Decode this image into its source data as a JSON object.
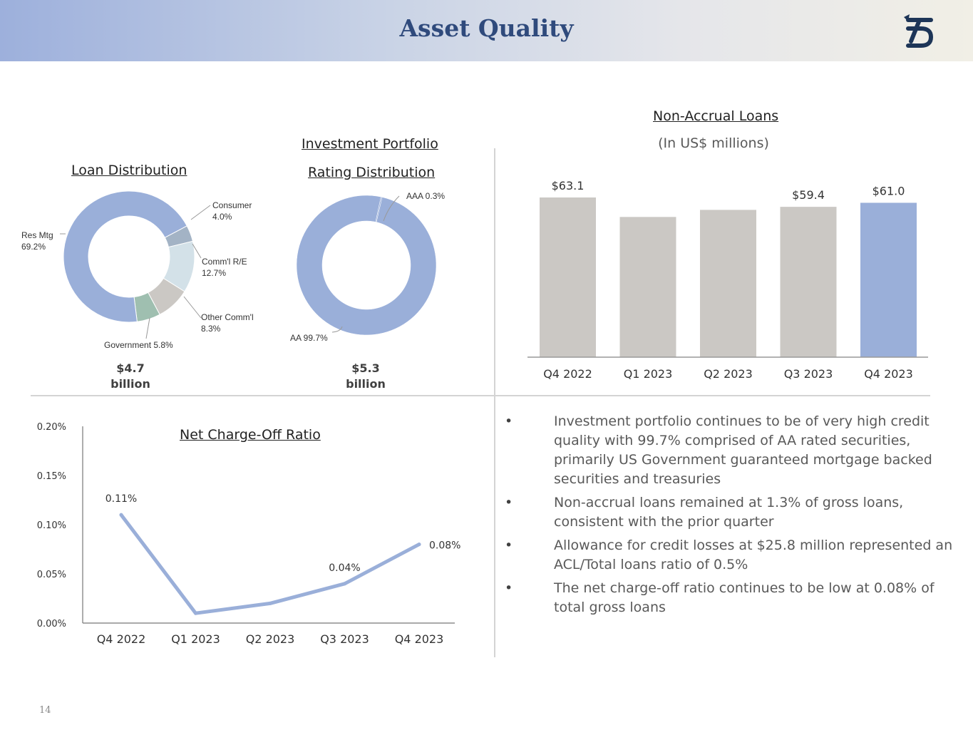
{
  "page": {
    "title": "Asset Quality",
    "page_number": "14"
  },
  "colors": {
    "header_text": "#2f4a7c",
    "accent_blue": "#9aafd9",
    "bar_gray": "#cbc8c4",
    "green": "#9fbfb0",
    "light_blue": "#d3e1e8",
    "slate": "#a3b3c5"
  },
  "loan_distribution": {
    "title": "Loan Distribution",
    "total_value": "$4.7",
    "total_unit": "billion",
    "labels": {
      "consumer": "Consumer",
      "consumer_pct": "4.0%",
      "comm_re": "Comm'l R/E",
      "comm_re_pct": "12.7%",
      "other_comm": "Other Comm'l",
      "other_comm_pct": "8.3%",
      "government": "Government 5.8%",
      "res_mtg": "Res Mtg",
      "res_mtg_pct": "69.2%"
    }
  },
  "investment_portfolio": {
    "title_line1": "Investment Portfolio",
    "title_line2": "Rating Distribution",
    "total_value": "$5.3",
    "total_unit": "billion",
    "labels": {
      "aaa": "AAA 0.3%",
      "aa": "AA 99.7%"
    }
  },
  "non_accrual": {
    "title": "Non-Accrual Loans",
    "subtitle": "(In US$ millions)"
  },
  "net_charge_off": {
    "title": "Net Charge-Off Ratio"
  },
  "chart_data": [
    {
      "type": "pie",
      "categories": [
        "Res Mtg",
        "Consumer",
        "Comm'l R/E",
        "Other Comm'l",
        "Government"
      ],
      "values": [
        69.2,
        4.0,
        12.7,
        8.3,
        5.8
      ],
      "colors": [
        "#9aafd9",
        "#a3b3c5",
        "#d3e1e8",
        "#cbc8c4",
        "#9fbfb0"
      ],
      "title": "Loan Distribution"
    },
    {
      "type": "pie",
      "categories": [
        "AAA",
        "AA"
      ],
      "values": [
        0.3,
        99.7
      ],
      "colors": [
        "#9aafd9",
        "#9aafd9"
      ],
      "title": "Investment Portfolio Rating Distribution"
    },
    {
      "type": "bar",
      "title": "Non-Accrual Loans",
      "categories": [
        "Q4 2022",
        "Q1 2023",
        "Q2 2023",
        "Q3 2023",
        "Q4 2023"
      ],
      "values": [
        63.1,
        55.4,
        58.2,
        59.4,
        61.0
      ],
      "data_labels": [
        "$63.1",
        "",
        "",
        "$59.4",
        "$61.0"
      ],
      "colors": [
        "#cbc8c4",
        "#cbc8c4",
        "#cbc8c4",
        "#cbc8c4",
        "#9aafd9"
      ],
      "ylim": [
        0,
        70
      ]
    },
    {
      "type": "line",
      "title": "Net Charge-Off Ratio",
      "categories": [
        "Q4 2022",
        "Q1 2023",
        "Q2 2023",
        "Q3 2023",
        "Q4 2023"
      ],
      "values": [
        0.11,
        0.01,
        0.02,
        0.04,
        0.08
      ],
      "data_labels": [
        "0.11%",
        "",
        "",
        "0.04%",
        "0.08%"
      ],
      "y_ticks": [
        "0.00%",
        "0.05%",
        "0.10%",
        "0.15%",
        "0.20%"
      ],
      "ylim": [
        0,
        0.2
      ],
      "color": "#9aafd9"
    }
  ],
  "bullets": [
    "Investment portfolio continues to be of very high credit quality with 99.7% comprised of AA rated securities, primarily US Government guaranteed mortgage backed securities and treasuries",
    "Non-accrual loans remained at 1.3% of gross loans, consistent with the prior quarter",
    "Allowance for credit losses at $25.8 million represented an ACL/Total loans ratio of 0.5%",
    "The net charge-off ratio continues to be low at 0.08% of total gross loans"
  ],
  "bullet_symbol": "•"
}
